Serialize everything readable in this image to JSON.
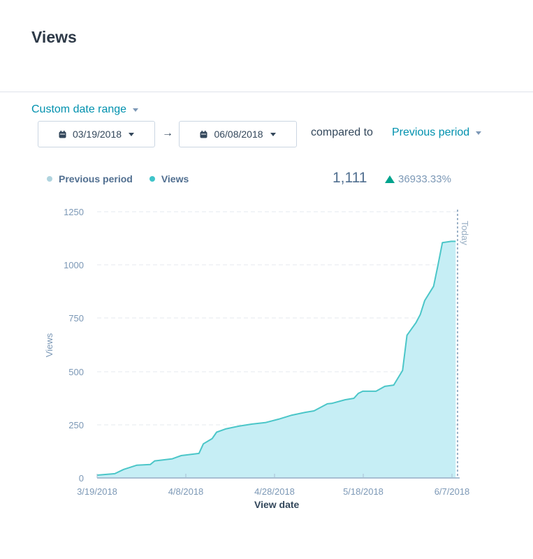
{
  "header": {
    "title": "Views"
  },
  "filters": {
    "date_range_label": "Custom date range",
    "start_date": "03/19/2018",
    "end_date": "06/08/2018",
    "arrow": "→",
    "compared_to_label": "compared to",
    "comparison_value": "Previous period",
    "icons": {
      "calendar": "calendar-icon",
      "dropdown": "caret-down-icon",
      "arrow": "arrow-right-icon"
    }
  },
  "summary": {
    "total": "1,111",
    "change": "36933.33%",
    "change_direction": "up",
    "change_color": "#00a38d"
  },
  "legend": {
    "items": [
      {
        "label": "Previous period",
        "color": "#b0d4df"
      },
      {
        "label": "Views",
        "color": "#3fc4c9"
      }
    ]
  },
  "colors": {
    "accent": "#0091ae",
    "line": "#4bc6c8",
    "area": "#c6eef5",
    "today_line": "#7c98b6",
    "grid": "#e4e9ef"
  },
  "chart_data": {
    "type": "area",
    "title": "Views",
    "xlabel": "View date",
    "ylabel": "Views",
    "ylim": [
      0,
      1250
    ],
    "yticks": [
      0,
      250,
      500,
      750,
      1000,
      1250
    ],
    "xticks": [
      "3/19/2018",
      "4/8/2018",
      "4/28/2018",
      "5/18/2018",
      "6/7/2018"
    ],
    "grid": true,
    "legend_position": "top-left",
    "annotations": [
      {
        "label": "Today",
        "x": "6/8/2018",
        "style": "dashed-vertical"
      }
    ],
    "series": [
      {
        "name": "Views",
        "x": [
          "3/19/2018",
          "3/23/2018",
          "3/25/2018",
          "3/28/2018",
          "3/31/2018",
          "4/1/2018",
          "4/5/2018",
          "4/7/2018",
          "4/11/2018",
          "4/12/2018",
          "4/14/2018",
          "4/15/2018",
          "4/17/2018",
          "4/20/2018",
          "4/23/2018",
          "4/26/2018",
          "4/29/2018",
          "5/2/2018",
          "5/5/2018",
          "5/7/2018",
          "5/10/2018",
          "5/11/2018",
          "5/14/2018",
          "5/16/2018",
          "5/17/2018",
          "5/18/2018",
          "5/21/2018",
          "5/23/2018",
          "5/25/2018",
          "5/27/2018",
          "5/28/2018",
          "5/30/2018",
          "5/31/2018",
          "6/1/2018",
          "6/3/2018",
          "6/4/2018",
          "6/5/2018",
          "6/7/2018",
          "6/8/2018"
        ],
        "values": [
          13,
          20,
          40,
          60,
          63,
          80,
          90,
          105,
          115,
          160,
          185,
          215,
          230,
          243,
          253,
          260,
          276,
          295,
          308,
          315,
          348,
          350,
          367,
          374,
          397,
          407,
          407,
          430,
          436,
          505,
          670,
          728,
          767,
          833,
          900,
          1000,
          1105,
          1111,
          1111
        ]
      },
      {
        "name": "Previous period",
        "x": [],
        "values": []
      }
    ]
  },
  "chart_labels": {
    "y_ticks": [
      "1250",
      "1000",
      "750",
      "500",
      "250",
      "0"
    ],
    "x_ticks": [
      "3/19/2018",
      "4/8/2018",
      "4/28/2018",
      "5/18/2018",
      "6/7/2018"
    ],
    "today": "Today",
    "y_title": "Views",
    "x_title": "View date"
  }
}
